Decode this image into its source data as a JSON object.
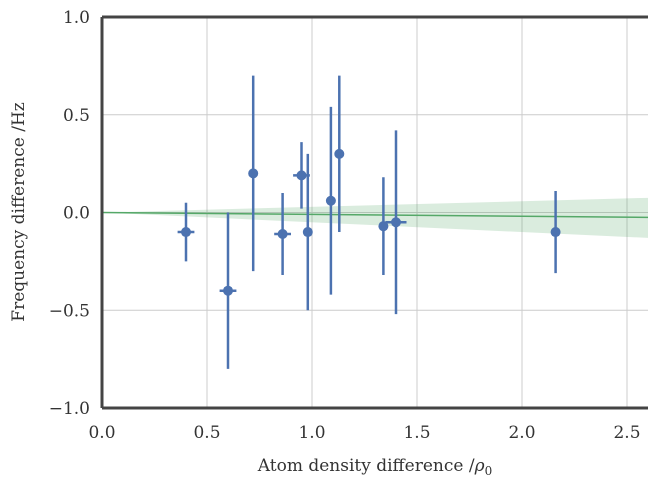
{
  "chart_data": {
    "type": "scatter",
    "title": "",
    "xlabel": "Atom density difference /",
    "xlabel_symbol": "ρ",
    "xlabel_subscript": "0",
    "ylabel": "Frequency difference /Hz",
    "xlim": [
      0.0,
      2.6
    ],
    "ylim": [
      -1.0,
      1.0
    ],
    "x_ticks": [
      "0.0",
      "0.5",
      "1.0",
      "1.5",
      "2.0",
      "2.5"
    ],
    "x_tick_values": [
      0.0,
      0.5,
      1.0,
      1.5,
      2.0,
      2.5
    ],
    "y_ticks": [
      "−1.0",
      "−0.5",
      "0.0",
      "0.5",
      "1.0"
    ],
    "y_tick_values": [
      -1.0,
      -0.5,
      0.0,
      0.5,
      1.0
    ],
    "grid": true,
    "series": [
      {
        "type": "errorbar",
        "color": "#4C72B0",
        "points": [
          {
            "x": 0.4,
            "y": -0.1,
            "xerr": 0.04,
            "yerr": 0.15
          },
          {
            "x": 0.6,
            "y": -0.4,
            "xerr": 0.04,
            "yerr": 0.4
          },
          {
            "x": 0.72,
            "y": 0.2,
            "xerr": 0.01,
            "yerr": 0.5
          },
          {
            "x": 0.86,
            "y": -0.11,
            "xerr": 0.04,
            "yerr": 0.21
          },
          {
            "x": 0.95,
            "y": 0.19,
            "xerr": 0.04,
            "yerr": 0.17
          },
          {
            "x": 0.98,
            "y": -0.1,
            "xerr": 0.01,
            "yerr": 0.4
          },
          {
            "x": 1.09,
            "y": 0.06,
            "xerr": 0.01,
            "yerr": 0.48
          },
          {
            "x": 1.13,
            "y": 0.3,
            "xerr": 0.01,
            "yerr": 0.4
          },
          {
            "x": 1.34,
            "y": -0.07,
            "xerr": 0.02,
            "yerr": 0.25
          },
          {
            "x": 1.4,
            "y": -0.05,
            "xerr": 0.05,
            "yerr": 0.47
          },
          {
            "x": 2.16,
            "y": -0.1,
            "xerr": 0.01,
            "yerr": 0.21
          }
        ]
      },
      {
        "type": "fit-line",
        "color": "#55A868",
        "x": [
          0.0,
          2.6
        ],
        "y": [
          0.0,
          -0.025
        ]
      },
      {
        "type": "confidence-band",
        "color": "#55A868",
        "x": [
          0.0,
          2.6
        ],
        "upper": [
          0.0,
          0.075
        ],
        "lower": [
          0.0,
          -0.13
        ]
      }
    ]
  }
}
